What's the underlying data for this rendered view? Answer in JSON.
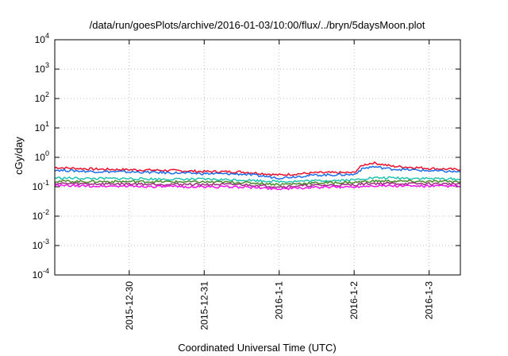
{
  "chart_data": {
    "type": "line",
    "title": "/data/run/goesPlots/archive/2016-01-03/10:00/flux/../bryn/5daysMoon.plot",
    "xlabel": "Coordinated Universal Time (UTC)",
    "ylabel": "cGy/day",
    "yscale": "log",
    "ylim": [
      0.0001,
      10000
    ],
    "xlim": [
      "2015-12-29T00:10",
      "2016-01-03T10:00"
    ],
    "y_ticks": [
      {
        "mantissa": "10",
        "exp": "4",
        "value": 10000
      },
      {
        "mantissa": "10",
        "exp": "3",
        "value": 1000
      },
      {
        "mantissa": "10",
        "exp": "2",
        "value": 100
      },
      {
        "mantissa": "10",
        "exp": "1",
        "value": 10
      },
      {
        "mantissa": "10",
        "exp": "0",
        "value": 1
      },
      {
        "mantissa": "10",
        "exp": "-1",
        "value": 0.1
      },
      {
        "mantissa": "10",
        "exp": "-2",
        "value": 0.01
      },
      {
        "mantissa": "10",
        "exp": "-3",
        "value": 0.001
      },
      {
        "mantissa": "10",
        "exp": "-4",
        "value": 0.0001
      }
    ],
    "x_ticks": [
      {
        "label": "2015-12-30",
        "date": "2015-12-30"
      },
      {
        "label": "2015-12-31",
        "date": "2015-12-31"
      },
      {
        "label": "2016-1-1",
        "date": "2016-01-01"
      },
      {
        "label": "2016-1-2",
        "date": "2016-01-02"
      },
      {
        "label": "2016-1-3",
        "date": "2016-01-03"
      }
    ],
    "grid": true,
    "series": [
      {
        "color": "#e8112d",
        "x": [
          "2015-12-29T00:10",
          "2015-12-29T12:00",
          "2015-12-30T00:00",
          "2015-12-30T12:00",
          "2015-12-31T00:00",
          "2015-12-31T12:00",
          "2016-01-01T00:00",
          "2016-01-01T12:00",
          "2016-01-02T00:00",
          "2016-01-02T03:00",
          "2016-01-02T06:00",
          "2016-01-02T12:00",
          "2016-01-03T00:00",
          "2016-01-03T10:00"
        ],
        "y": [
          0.45,
          0.4,
          0.38,
          0.36,
          0.33,
          0.32,
          0.25,
          0.3,
          0.3,
          0.55,
          0.65,
          0.5,
          0.42,
          0.38
        ]
      },
      {
        "color": "#1e6ee8",
        "x": [
          "2015-12-29T00:10",
          "2015-12-29T12:00",
          "2015-12-30T00:00",
          "2015-12-30T12:00",
          "2015-12-31T00:00",
          "2015-12-31T12:00",
          "2016-01-01T00:00",
          "2016-01-01T12:00",
          "2016-01-02T00:00",
          "2016-01-02T03:00",
          "2016-01-02T06:00",
          "2016-01-02T12:00",
          "2016-01-03T00:00",
          "2016-01-03T10:00"
        ],
        "y": [
          0.37,
          0.33,
          0.32,
          0.3,
          0.28,
          0.27,
          0.2,
          0.25,
          0.26,
          0.42,
          0.48,
          0.4,
          0.35,
          0.32
        ]
      },
      {
        "color": "#20c4b0",
        "x": [
          "2015-12-29T00:10",
          "2015-12-29T12:00",
          "2015-12-30T00:00",
          "2015-12-30T12:00",
          "2015-12-31T00:00",
          "2015-12-31T12:00",
          "2016-01-01T00:00",
          "2016-01-01T12:00",
          "2016-01-02T00:00",
          "2016-01-02T03:00",
          "2016-01-02T06:00",
          "2016-01-02T12:00",
          "2016-01-03T00:00",
          "2016-01-03T10:00"
        ],
        "y": [
          0.2,
          0.19,
          0.19,
          0.18,
          0.18,
          0.17,
          0.15,
          0.16,
          0.17,
          0.19,
          0.2,
          0.2,
          0.19,
          0.18
        ]
      },
      {
        "color": "#4a8a2a",
        "x": [
          "2015-12-29T00:10",
          "2015-12-29T12:00",
          "2015-12-30T00:00",
          "2015-12-30T12:00",
          "2015-12-31T00:00",
          "2015-12-31T12:00",
          "2016-01-01T00:00",
          "2016-01-01T12:00",
          "2016-01-02T00:00",
          "2016-01-02T03:00",
          "2016-01-02T06:00",
          "2016-01-02T12:00",
          "2016-01-03T00:00",
          "2016-01-03T10:00"
        ],
        "y": [
          0.155,
          0.15,
          0.15,
          0.148,
          0.145,
          0.14,
          0.12,
          0.135,
          0.14,
          0.15,
          0.155,
          0.155,
          0.15,
          0.15
        ]
      },
      {
        "color": "#9b2d7f",
        "x": [
          "2015-12-29T00:10",
          "2015-12-29T12:00",
          "2015-12-30T00:00",
          "2015-12-30T12:00",
          "2015-12-31T00:00",
          "2015-12-31T12:00",
          "2016-01-01T00:00",
          "2016-01-01T12:00",
          "2016-01-02T00:00",
          "2016-01-02T03:00",
          "2016-01-02T06:00",
          "2016-01-02T12:00",
          "2016-01-03T00:00",
          "2016-01-03T10:00"
        ],
        "y": [
          0.13,
          0.125,
          0.125,
          0.122,
          0.12,
          0.118,
          0.1,
          0.112,
          0.115,
          0.125,
          0.13,
          0.128,
          0.125,
          0.125
        ]
      },
      {
        "color": "#f012e8",
        "x": [
          "2015-12-29T00:10",
          "2015-12-29T12:00",
          "2015-12-30T00:00",
          "2015-12-30T12:00",
          "2015-12-31T00:00",
          "2015-12-31T12:00",
          "2016-01-01T00:00",
          "2016-01-01T12:00",
          "2016-01-02T00:00",
          "2016-01-02T03:00",
          "2016-01-02T06:00",
          "2016-01-02T12:00",
          "2016-01-03T00:00",
          "2016-01-03T10:00"
        ],
        "y": [
          0.11,
          0.105,
          0.105,
          0.1,
          0.1,
          0.098,
          0.085,
          0.095,
          0.1,
          0.105,
          0.11,
          0.108,
          0.105,
          0.105
        ]
      }
    ]
  }
}
